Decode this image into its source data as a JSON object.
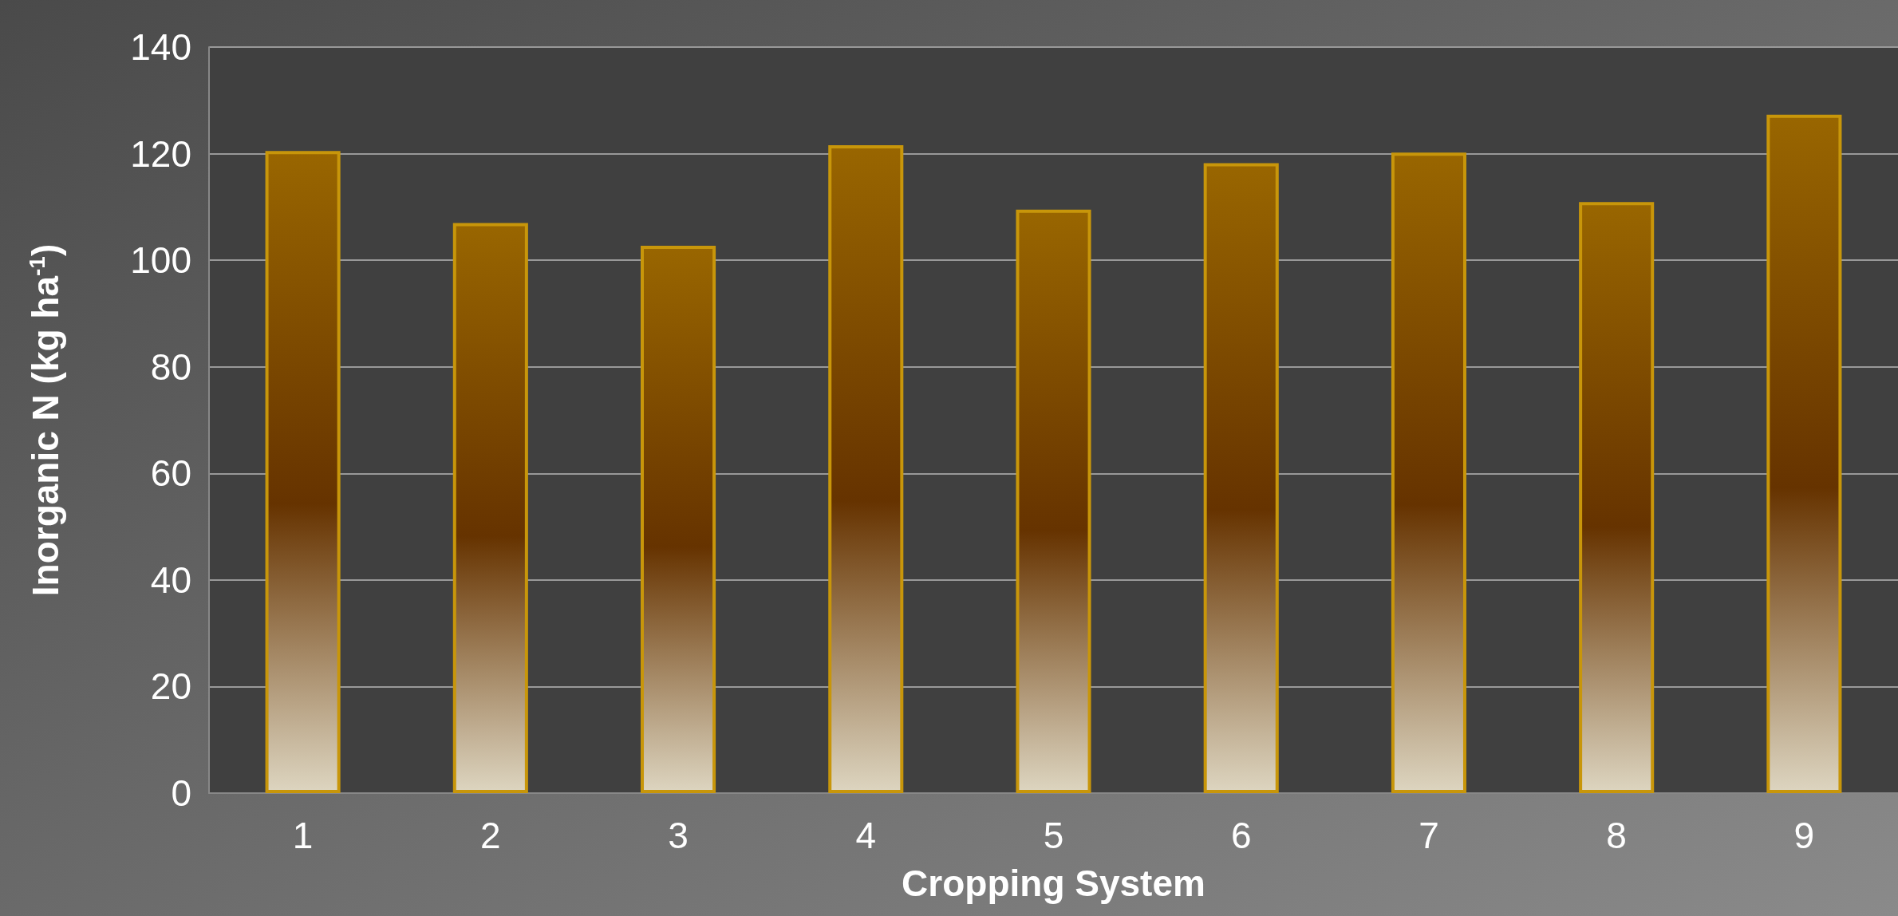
{
  "chart_data": {
    "type": "bar",
    "xlabel": "Cropping System",
    "ylabel": "Inorganic N (kg ha$^{-1}$)",
    "categories": [
      "1",
      "2",
      "3",
      "4",
      "5",
      "6",
      "7",
      "8",
      "9"
    ],
    "values": [
      120.5,
      107,
      102.7,
      121.6,
      109.5,
      118.2,
      120.2,
      110.9,
      127.3
    ],
    "color": "#c8960a",
    "ylim": [
      0,
      140
    ],
    "yticks": [
      0,
      20,
      40,
      60,
      80,
      100,
      120,
      140
    ],
    "grid": "y"
  }
}
